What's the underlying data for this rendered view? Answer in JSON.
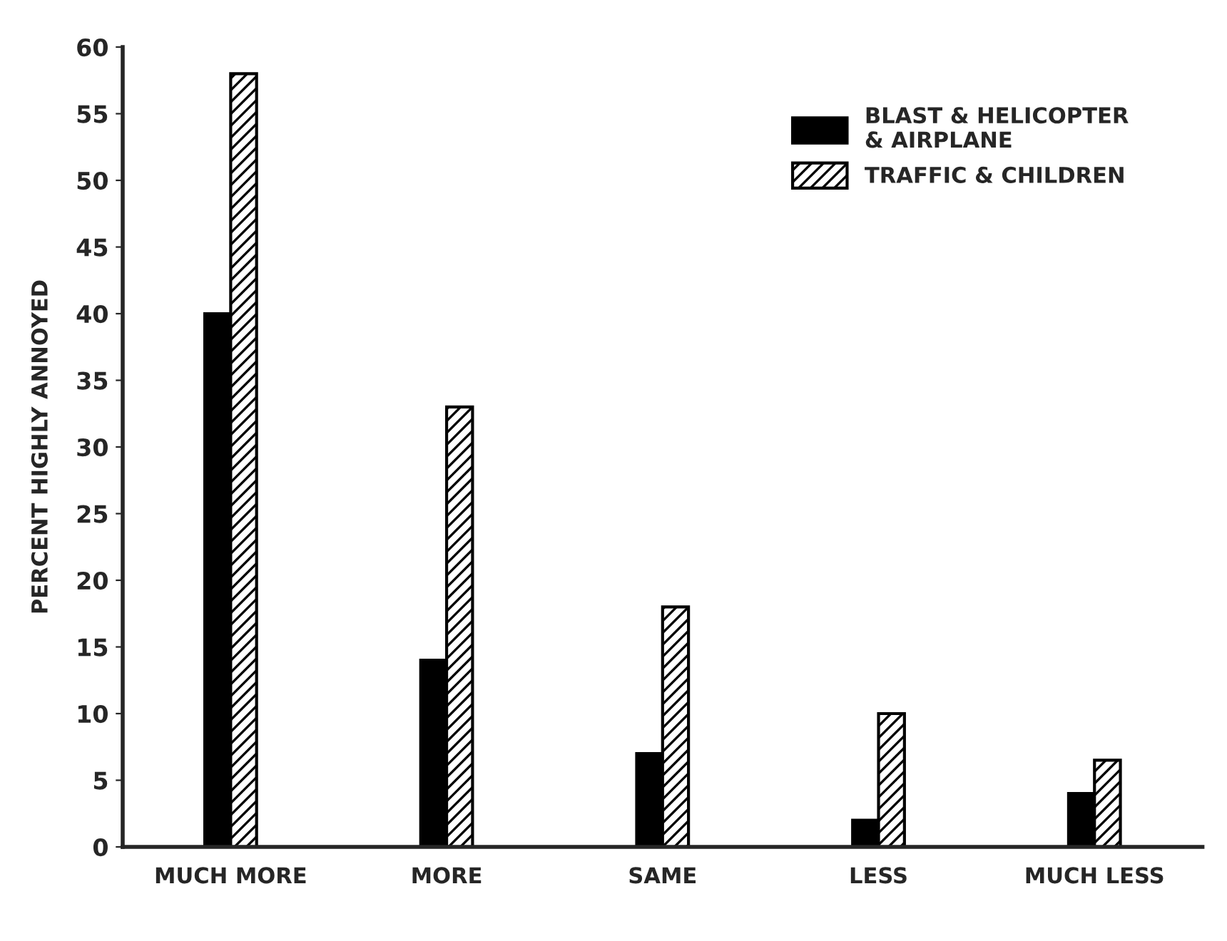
{
  "chart_data": {
    "type": "bar",
    "ylabel": "PERCENT HIGHLY ANNOYED",
    "categories": [
      "MUCH MORE",
      "MORE",
      "SAME",
      "LESS",
      "MUCH LESS"
    ],
    "series": [
      {
        "name": "BLAST & HELICOPTER\n& AIRPLANE",
        "color": "#000000",
        "values": [
          40,
          14,
          7,
          2,
          4
        ]
      },
      {
        "name": "TRAFFIC & CHILDREN",
        "color": "#000000",
        "values": [
          58,
          33,
          18,
          10,
          6.5
        ]
      }
    ],
    "ylim": [
      0,
      60
    ],
    "yticks": [
      0,
      5,
      10,
      15,
      20,
      25,
      30,
      35,
      40,
      45,
      50,
      55,
      60
    ],
    "grid": false,
    "legend": "top right"
  }
}
